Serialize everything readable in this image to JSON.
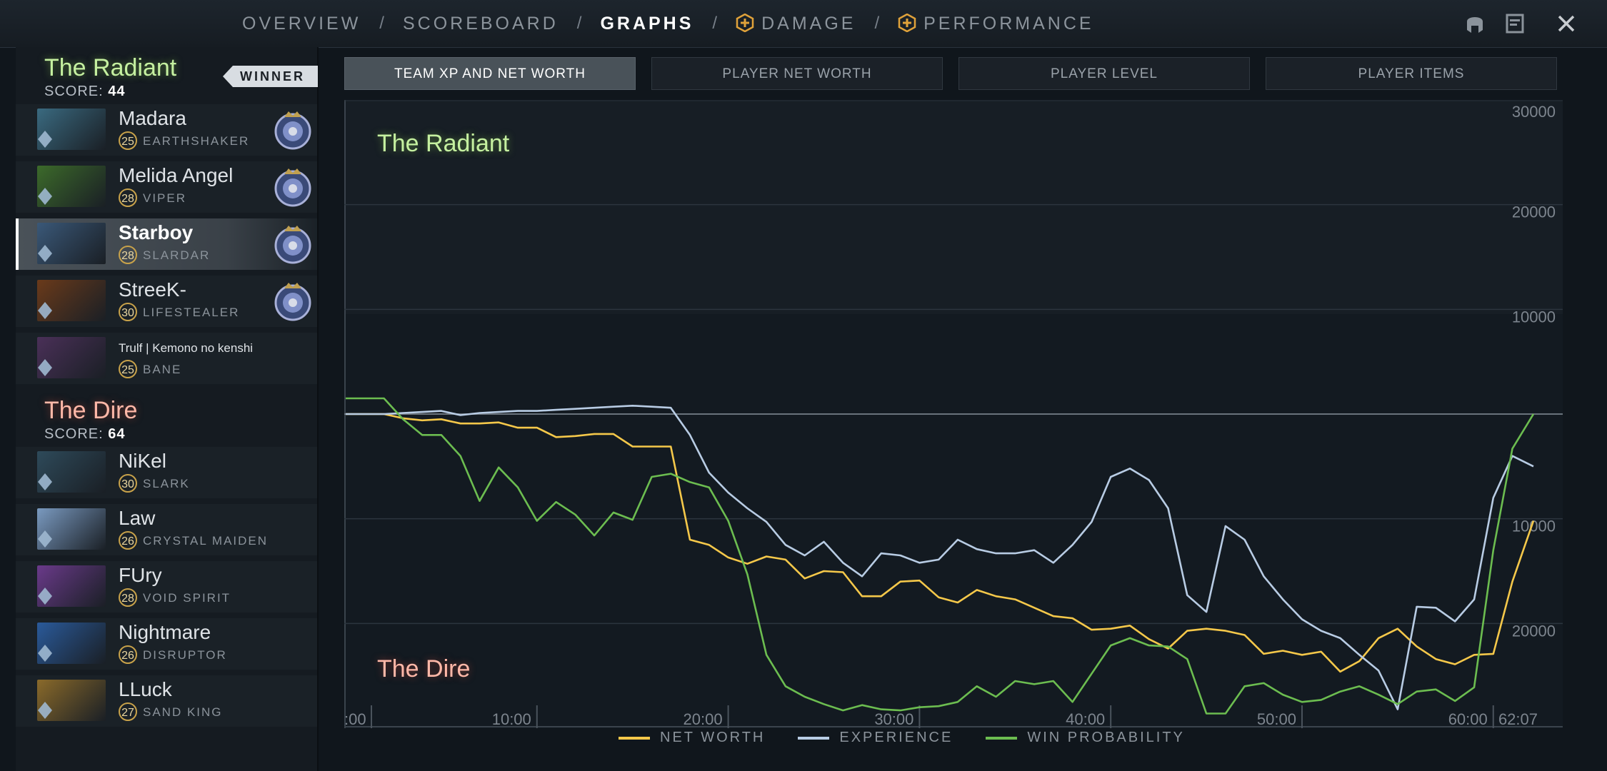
{
  "nav": {
    "items": [
      {
        "label": "OVERVIEW",
        "active": false,
        "plus": false
      },
      {
        "label": "SCOREBOARD",
        "active": false,
        "plus": false
      },
      {
        "label": "GRAPHS",
        "active": true,
        "plus": false
      },
      {
        "label": "DAMAGE",
        "active": false,
        "plus": true
      },
      {
        "label": "PERFORMANCE",
        "active": false,
        "plus": true
      }
    ],
    "separator": "/",
    "icons": [
      "helmet-icon",
      "notes-icon",
      "close-icon"
    ]
  },
  "radiant": {
    "name": "The Radiant",
    "winner_label": "WINNER",
    "score_label": "SCORE:",
    "score": "44",
    "players": [
      {
        "name": "Madara",
        "level": "25",
        "hero": "EARTHSHAKER",
        "portrait_color": "#3a6a80",
        "medal": true,
        "selected": false
      },
      {
        "name": "Melida Angel",
        "level": "28",
        "hero": "VIPER",
        "portrait_color": "#3c6a2a",
        "medal": true,
        "selected": false
      },
      {
        "name": "Starboy",
        "level": "28",
        "hero": "SLARDAR",
        "portrait_color": "#3a5878",
        "medal": true,
        "selected": true
      },
      {
        "name": "StreeK-",
        "level": "30",
        "hero": "LIFESTEALER",
        "portrait_color": "#6a3a1a",
        "medal": true,
        "selected": false
      },
      {
        "name": "Trulf | Kemono no kenshi",
        "level": "25",
        "hero": "BANE",
        "portrait_color": "#4a3058",
        "medal": false,
        "selected": false
      }
    ]
  },
  "dire": {
    "name": "The Dire",
    "score_label": "SCORE:",
    "score": "64",
    "players": [
      {
        "name": "NiKel",
        "level": "30",
        "hero": "SLARK",
        "portrait_color": "#2e4a5a"
      },
      {
        "name": "Law",
        "level": "26",
        "hero": "CRYSTAL MAIDEN",
        "portrait_color": "#7a9ac0"
      },
      {
        "name": "FUry",
        "level": "28",
        "hero": "VOID SPIRIT",
        "portrait_color": "#6a3a8a"
      },
      {
        "name": "Nightmare",
        "level": "26",
        "hero": "DISRUPTOR",
        "portrait_color": "#2a5a9a"
      },
      {
        "name": "LLuck",
        "level": "27",
        "hero": "SAND KING",
        "portrait_color": "#8a6a2a"
      }
    ]
  },
  "tabs": [
    {
      "label": "TEAM XP AND NET WORTH",
      "active": true
    },
    {
      "label": "PLAYER NET WORTH",
      "active": false
    },
    {
      "label": "PLAYER LEVEL",
      "active": false
    },
    {
      "label": "PLAYER ITEMS",
      "active": false
    }
  ],
  "graph": {
    "radiant_label": "The Radiant",
    "dire_label": "The Dire",
    "colors": {
      "net_worth": "#f5c84a",
      "experience": "#b8cce4",
      "win_probability": "#6cbd50"
    }
  },
  "chart_data": {
    "type": "line",
    "xlim": [
      0,
      62.1
    ],
    "ylim": [
      -30000,
      30000
    ],
    "y_note": "positive = Radiant advantage, negative = Dire advantage",
    "y_ticks": [
      30000,
      20000,
      10000,
      0,
      -10000,
      -20000,
      -30000
    ],
    "y_tick_labels": [
      "30000",
      "20000",
      "10000",
      "",
      "10000",
      "20000",
      "30000"
    ],
    "x_tick_labels": [
      ":00",
      "10:00",
      "20:00",
      "30:00",
      "40:00",
      "50:00",
      "60:00",
      "62:07"
    ],
    "x_ticks": [
      0,
      10,
      20,
      30,
      40,
      50,
      60,
      62.1
    ],
    "legend": [
      "NET WORTH",
      "EXPERIENCE",
      "WIN PROBABILITY"
    ],
    "series": [
      {
        "name": "NET WORTH",
        "color": "#f5c84a",
        "x": [
          0,
          1,
          2,
          3,
          4,
          5,
          6,
          7,
          8,
          9,
          10,
          11,
          12,
          13,
          14,
          15,
          16,
          17,
          18,
          19,
          20,
          21,
          22,
          23,
          24,
          25,
          26,
          27,
          28,
          29,
          30,
          31,
          32,
          33,
          34,
          35,
          36,
          37,
          38,
          39,
          40,
          41,
          42,
          43,
          44,
          45,
          46,
          47,
          48,
          49,
          50,
          51,
          52,
          53,
          54,
          55,
          56,
          57,
          58,
          59,
          60,
          61,
          62.1
        ],
        "y": [
          0,
          0,
          0,
          -400,
          -600,
          -500,
          -900,
          -900,
          -800,
          -1300,
          -1300,
          -2200,
          -2100,
          -1900,
          -1900,
          -3100,
          -3100,
          -3100,
          -12000,
          -12500,
          -13700,
          -14300,
          -13600,
          -13900,
          -15700,
          -15000,
          -15100,
          -17400,
          -17400,
          -16000,
          -15900,
          -17500,
          -18000,
          -16800,
          -17400,
          -17700,
          -18500,
          -19300,
          -19500,
          -20600,
          -20500,
          -20200,
          -21500,
          -22400,
          -20700,
          -20500,
          -20700,
          -21100,
          -22900,
          -22600,
          -23000,
          -22700,
          -24600,
          -23600,
          -21400,
          -20500,
          -22200,
          -23400,
          -23900,
          -23000,
          -22900,
          -16000,
          -10200
        ]
      },
      {
        "name": "EXPERIENCE",
        "color": "#b8cce4",
        "x": [
          0,
          1,
          2,
          3,
          4,
          5,
          6,
          7,
          8,
          9,
          10,
          11,
          12,
          13,
          14,
          15,
          16,
          17,
          18,
          19,
          20,
          21,
          22,
          23,
          24,
          25,
          26,
          27,
          28,
          29,
          30,
          31,
          32,
          33,
          34,
          35,
          36,
          37,
          38,
          39,
          40,
          41,
          42,
          43,
          44,
          45,
          46,
          47,
          48,
          49,
          50,
          51,
          52,
          53,
          54,
          55,
          56,
          57,
          58,
          59,
          60,
          61,
          62.1
        ],
        "y": [
          0,
          0,
          0,
          100,
          200,
          300,
          -100,
          100,
          200,
          300,
          300,
          400,
          500,
          600,
          700,
          800,
          700,
          600,
          -2000,
          -5600,
          -7500,
          -9000,
          -10300,
          -12500,
          -13500,
          -12200,
          -14200,
          -15500,
          -13300,
          -13500,
          -14200,
          -13900,
          -12000,
          -12900,
          -13300,
          -13300,
          -13000,
          -14200,
          -12500,
          -10300,
          -6000,
          -5200,
          -6300,
          -9000,
          -17300,
          -18900,
          -10700,
          -12000,
          -15500,
          -17700,
          -19600,
          -20700,
          -21400,
          -23000,
          -24500,
          -28200,
          -18400,
          -18500,
          -19800,
          -17700,
          -8000,
          -4000,
          -5000
        ]
      },
      {
        "name": "WIN PROBABILITY",
        "color": "#6cbd50",
        "x": [
          0,
          1,
          2,
          3,
          4,
          5,
          6,
          7,
          8,
          9,
          10,
          11,
          12,
          13,
          14,
          15,
          16,
          17,
          18,
          19,
          20,
          21,
          22,
          23,
          24,
          25,
          26,
          27,
          28,
          29,
          30,
          31,
          32,
          33,
          34,
          35,
          36,
          37,
          38,
          39,
          40,
          41,
          42,
          43,
          44,
          45,
          46,
          47,
          48,
          49,
          50,
          51,
          52,
          53,
          54,
          55,
          56,
          57,
          58,
          59,
          60,
          61,
          62.1
        ],
        "y": [
          1500,
          1500,
          1500,
          -500,
          -2000,
          -2000,
          -4000,
          -8300,
          -5100,
          -7000,
          -10200,
          -8400,
          -9600,
          -11600,
          -9400,
          -10100,
          -6000,
          -5700,
          -6500,
          -7000,
          -10200,
          -15300,
          -23000,
          -26000,
          -27000,
          -27700,
          -28300,
          -27800,
          -28200,
          -28300,
          -28000,
          -27900,
          -27500,
          -26000,
          -27000,
          -25500,
          -25800,
          -25500,
          -27500,
          -24800,
          -22100,
          -21400,
          -22100,
          -22200,
          -23400,
          -28600,
          -28600,
          -26000,
          -25700,
          -26800,
          -27500,
          -27300,
          -26500,
          -26000,
          -26800,
          -27700,
          -26500,
          -26300,
          -27400,
          -26100,
          -13000,
          -3300,
          0
        ]
      }
    ]
  }
}
